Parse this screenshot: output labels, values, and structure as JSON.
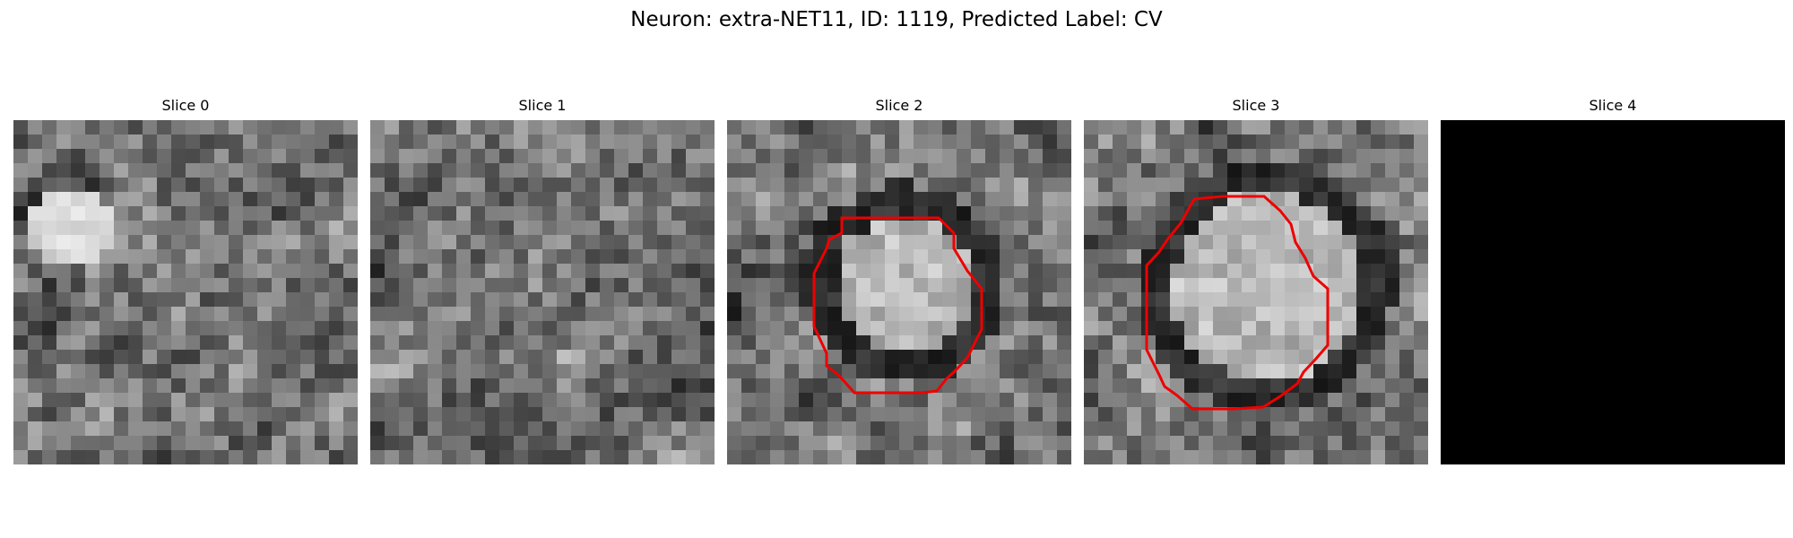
{
  "figure": {
    "title": "Neuron: extra-NET11, ID: 1119, Predicted Label: CV"
  },
  "colors": {
    "contour": "#ee0000",
    "background": "#ffffff"
  },
  "slices": [
    {
      "label": "Slice 0",
      "image": "grayscale-noise-patch",
      "has_contour": false,
      "blank": false
    },
    {
      "label": "Slice 1",
      "image": "grayscale-noise-patch",
      "has_contour": false,
      "blank": false
    },
    {
      "label": "Slice 2",
      "image": "grayscale-cell-with-dark-ring",
      "has_contour": true,
      "blank": false
    },
    {
      "label": "Slice 3",
      "image": "grayscale-cell-with-dark-ring",
      "has_contour": true,
      "blank": false
    },
    {
      "label": "Slice 4",
      "image": "black-empty-slice",
      "has_contour": false,
      "blank": true
    }
  ]
}
